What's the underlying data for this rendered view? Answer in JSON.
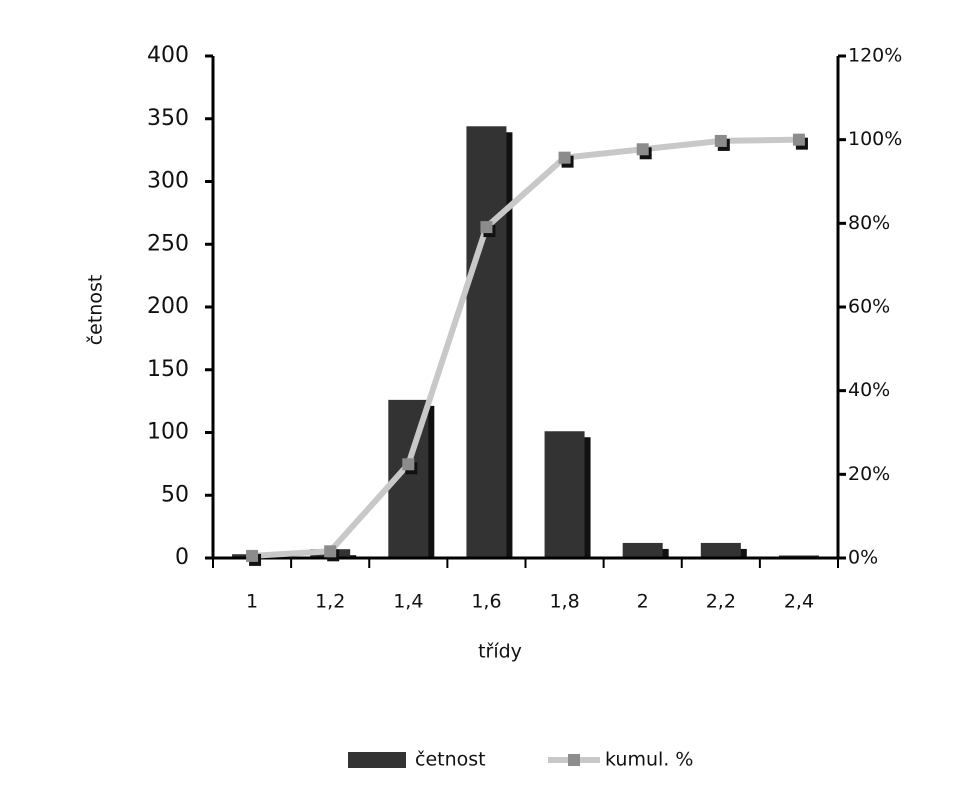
{
  "chart_data": {
    "type": "bar",
    "xlabel": "třídy",
    "ylabel": "četnost",
    "categories": [
      "1",
      "1,2",
      "1,4",
      "1,6",
      "1,8",
      "2",
      "2,2",
      "2,4"
    ],
    "series": [
      {
        "name": "četnost",
        "type": "bar",
        "color": "#333333",
        "values": [
          3,
          7,
          126,
          344,
          101,
          12,
          12,
          2
        ]
      },
      {
        "name": "kumul. %",
        "type": "line",
        "axis": "y2",
        "color": "#c8c8c8",
        "marker_color": "#8c8c8c",
        "values": [
          0.5,
          1.6,
          22.4,
          79.1,
          95.7,
          97.7,
          99.7,
          100
        ]
      }
    ],
    "ylim": [
      0,
      400
    ],
    "yticks": [
      0,
      50,
      100,
      150,
      200,
      250,
      300,
      350,
      400
    ],
    "y2lim": [
      0,
      120
    ],
    "y2ticks": [
      {
        "value": 0,
        "label": "0%"
      },
      {
        "value": 20,
        "label": "20%"
      },
      {
        "value": 40,
        "label": "40%"
      },
      {
        "value": 60,
        "label": "60%"
      },
      {
        "value": 80,
        "label": "80%"
      },
      {
        "value": 100,
        "label": "100%"
      },
      {
        "value": 120,
        "label": "120%"
      }
    ],
    "legend": "bottom"
  }
}
